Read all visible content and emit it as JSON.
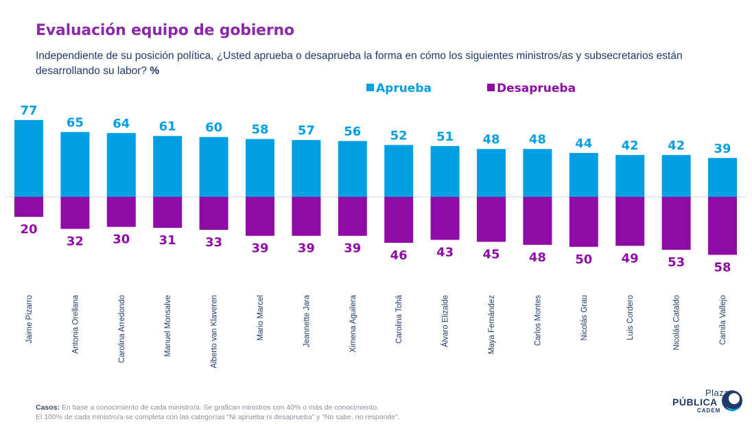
{
  "title": "Evaluación equipo de gobierno",
  "subtitle": "Independiente de su posición política, ¿Usted aprueba o desaprueba la forma en cómo los siguientes ministros/as y subsecretarios están desarrollando su labor?",
  "subtitle_unit": "%",
  "footer": {
    "casos_label": "Casos:",
    "casos_text": " En base a conocimiento de cada ministro/a. Se grafican ministros con 40% o más de conocimiento.",
    "note": "El 100% de cada ministro/a se completa con las categorías “Ni aprueba ni desaprueba” y “No sabe, no responde”."
  },
  "logo": {
    "plaza": "Plaza",
    "publica": "PÚBLICA",
    "cadem": "CADEM"
  },
  "colors": {
    "aprueba": "#009fe3",
    "desaprueba": "#8e0ba6",
    "title": "#8b2aa8",
    "text": "#1f3a68"
  },
  "chart_data": {
    "type": "bar",
    "categories": [
      "Jaime Pizarro",
      "Antonia Orellana",
      "Carolina Arredondo",
      "Manuel Monsalve",
      "Alberto van Klaveren",
      "Mario Marcel",
      "Jeannette Jara",
      "Ximena Aguilera",
      "Carolina Tohá",
      "Álvaro Elizalde",
      "Maya Fernández",
      "Carlos Montes",
      "Nicolás Grau",
      "Luis Cordero",
      "Nicolás Cataldo",
      "Camila Vallejo"
    ],
    "series": [
      {
        "name": "Aprueba",
        "values": [
          77,
          65,
          64,
          61,
          60,
          58,
          57,
          56,
          52,
          51,
          48,
          48,
          44,
          42,
          42,
          39
        ]
      },
      {
        "name": "Desaprueba",
        "values": [
          20,
          32,
          30,
          31,
          33,
          39,
          39,
          39,
          46,
          43,
          45,
          48,
          50,
          49,
          53,
          58
        ]
      }
    ],
    "legend": "top-center",
    "grid": false
  }
}
